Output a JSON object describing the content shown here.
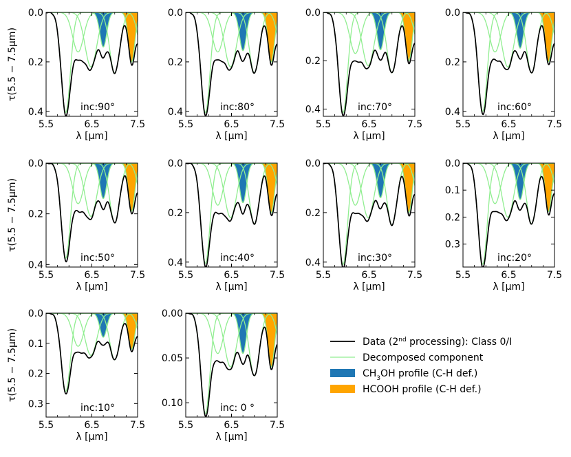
{
  "figure": {
    "ylabel": "τ(5.5 − 7.5μm)",
    "xlabel": "λ [μm]"
  },
  "legend": {
    "items": [
      {
        "key": "data",
        "label_pre": "Data (2",
        "label_sup": "nd",
        "label_post": " processing): Class 0/I",
        "color": "#000000",
        "kind": "line"
      },
      {
        "key": "component",
        "label_pre": "Decomposed component",
        "color": "#90ee90",
        "kind": "line"
      },
      {
        "key": "ch3oh",
        "label_pre": "CH",
        "label_sub": "3",
        "label_post": "OH profile (C-H def.)",
        "color": "#1f77b4",
        "kind": "patch"
      },
      {
        "key": "hcooh",
        "label_pre": "HCOOH profile (C-H def.)",
        "color": "#ffa500",
        "kind": "patch"
      }
    ]
  },
  "chart_data": [
    {
      "type": "line",
      "inc_label": "inc:90°",
      "xlim": [
        5.5,
        7.5
      ],
      "ylim": [
        0.0,
        0.42
      ],
      "yticks": [
        0.0,
        0.2,
        0.4
      ],
      "ytick_labels": [
        "0.0",
        "0.2",
        "0.4"
      ],
      "xticks": [
        5.5,
        6.5,
        7.5
      ],
      "xtick_labels": [
        "5.5",
        "6.5",
        "7.5"
      ],
      "components": [
        {
          "center": 5.93,
          "sigma": 0.1,
          "depth": 0.405
        },
        {
          "center": 6.2,
          "sigma": 0.12,
          "depth": 0.16
        },
        {
          "center": 6.48,
          "sigma": 0.13,
          "depth": 0.22
        },
        {
          "center": 6.75,
          "sigma": 0.075,
          "depth": 0.14
        },
        {
          "center": 7.0,
          "sigma": 0.11,
          "depth": 0.245
        },
        {
          "center": 7.37,
          "sigma": 0.07,
          "depth": 0.2
        },
        {
          "center": 7.6,
          "sigma": 0.1,
          "depth": 0.15
        }
      ],
      "ch3oh_index": 3,
      "hcooh_index": 5
    },
    {
      "type": "line",
      "inc_label": "inc:80°",
      "xlim": [
        5.5,
        7.5
      ],
      "ylim": [
        0.0,
        0.42
      ],
      "yticks": [
        0.0,
        0.2,
        0.4
      ],
      "ytick_labels": [
        "0.0",
        "0.2",
        "0.4"
      ],
      "xticks": [
        5.5,
        6.5,
        7.5
      ],
      "xtick_labels": [
        "5.5",
        "6.5",
        "7.5"
      ],
      "components": [
        {
          "center": 5.93,
          "sigma": 0.1,
          "depth": 0.405
        },
        {
          "center": 6.2,
          "sigma": 0.12,
          "depth": 0.16
        },
        {
          "center": 6.48,
          "sigma": 0.13,
          "depth": 0.22
        },
        {
          "center": 6.75,
          "sigma": 0.075,
          "depth": 0.155
        },
        {
          "center": 7.0,
          "sigma": 0.11,
          "depth": 0.245
        },
        {
          "center": 7.37,
          "sigma": 0.07,
          "depth": 0.2
        },
        {
          "center": 7.6,
          "sigma": 0.1,
          "depth": 0.15
        }
      ],
      "ch3oh_index": 3,
      "hcooh_index": 5
    },
    {
      "type": "line",
      "inc_label": "inc:70°",
      "xlim": [
        5.5,
        7.5
      ],
      "ylim": [
        0.0,
        0.43
      ],
      "yticks": [
        0.0,
        0.2,
        0.4
      ],
      "ytick_labels": [
        "0.0",
        "0.2",
        "0.4"
      ],
      "xticks": [
        5.5,
        6.5,
        7.5
      ],
      "xtick_labels": [
        "5.5",
        "6.5",
        "7.5"
      ],
      "components": [
        {
          "center": 5.93,
          "sigma": 0.1,
          "depth": 0.415
        },
        {
          "center": 6.2,
          "sigma": 0.12,
          "depth": 0.17
        },
        {
          "center": 6.48,
          "sigma": 0.13,
          "depth": 0.22
        },
        {
          "center": 6.75,
          "sigma": 0.075,
          "depth": 0.155
        },
        {
          "center": 7.0,
          "sigma": 0.11,
          "depth": 0.25
        },
        {
          "center": 7.37,
          "sigma": 0.07,
          "depth": 0.2
        },
        {
          "center": 7.6,
          "sigma": 0.1,
          "depth": 0.15
        }
      ],
      "ch3oh_index": 3,
      "hcooh_index": 5
    },
    {
      "type": "line",
      "inc_label": "inc:60°",
      "xlim": [
        5.5,
        7.5
      ],
      "ylim": [
        0.0,
        0.42
      ],
      "yticks": [
        0.0,
        0.2,
        0.4
      ],
      "ytick_labels": [
        "0.0",
        "0.2",
        "0.4"
      ],
      "xticks": [
        5.5,
        6.5,
        7.5
      ],
      "xtick_labels": [
        "5.5",
        "6.5",
        "7.5"
      ],
      "components": [
        {
          "center": 5.93,
          "sigma": 0.1,
          "depth": 0.4
        },
        {
          "center": 6.2,
          "sigma": 0.12,
          "depth": 0.16
        },
        {
          "center": 6.48,
          "sigma": 0.13,
          "depth": 0.22
        },
        {
          "center": 6.75,
          "sigma": 0.075,
          "depth": 0.145
        },
        {
          "center": 7.0,
          "sigma": 0.11,
          "depth": 0.245
        },
        {
          "center": 7.37,
          "sigma": 0.07,
          "depth": 0.2
        },
        {
          "center": 7.6,
          "sigma": 0.1,
          "depth": 0.15
        }
      ],
      "ch3oh_index": 3,
      "hcooh_index": 5
    },
    {
      "type": "line",
      "inc_label": "inc:50°",
      "xlim": [
        5.5,
        7.5
      ],
      "ylim": [
        0.0,
        0.41
      ],
      "yticks": [
        0.0,
        0.2,
        0.4
      ],
      "ytick_labels": [
        "0.0",
        "0.2",
        "0.4"
      ],
      "xticks": [
        5.5,
        6.5,
        7.5
      ],
      "xtick_labels": [
        "5.5",
        "6.5",
        "7.5"
      ],
      "components": [
        {
          "center": 5.93,
          "sigma": 0.1,
          "depth": 0.375
        },
        {
          "center": 6.2,
          "sigma": 0.12,
          "depth": 0.16
        },
        {
          "center": 6.48,
          "sigma": 0.13,
          "depth": 0.21
        },
        {
          "center": 6.75,
          "sigma": 0.075,
          "depth": 0.14
        },
        {
          "center": 7.0,
          "sigma": 0.11,
          "depth": 0.235
        },
        {
          "center": 7.37,
          "sigma": 0.07,
          "depth": 0.19
        },
        {
          "center": 7.6,
          "sigma": 0.1,
          "depth": 0.14
        }
      ],
      "ch3oh_index": 3,
      "hcooh_index": 5
    },
    {
      "type": "line",
      "inc_label": "inc:40°",
      "xlim": [
        5.5,
        7.5
      ],
      "ylim": [
        0.0,
        0.42
      ],
      "yticks": [
        0.0,
        0.2,
        0.4
      ],
      "ytick_labels": [
        "0.0",
        "0.2",
        "0.4"
      ],
      "xticks": [
        5.5,
        6.5,
        7.5
      ],
      "xtick_labels": [
        "5.5",
        "6.5",
        "7.5"
      ],
      "components": [
        {
          "center": 5.93,
          "sigma": 0.1,
          "depth": 0.405
        },
        {
          "center": 6.2,
          "sigma": 0.12,
          "depth": 0.17
        },
        {
          "center": 6.48,
          "sigma": 0.13,
          "depth": 0.22
        },
        {
          "center": 6.75,
          "sigma": 0.075,
          "depth": 0.16
        },
        {
          "center": 7.0,
          "sigma": 0.11,
          "depth": 0.245
        },
        {
          "center": 7.37,
          "sigma": 0.07,
          "depth": 0.2
        },
        {
          "center": 7.6,
          "sigma": 0.1,
          "depth": 0.15
        }
      ],
      "ch3oh_index": 3,
      "hcooh_index": 5
    },
    {
      "type": "line",
      "inc_label": "inc:30°",
      "xlim": [
        5.5,
        7.5
      ],
      "ylim": [
        0.0,
        0.42
      ],
      "yticks": [
        0.0,
        0.2,
        0.4
      ],
      "ytick_labels": [
        "0.0",
        "0.2",
        "0.4"
      ],
      "xticks": [
        5.5,
        6.5,
        7.5
      ],
      "xtick_labels": [
        "5.5",
        "6.5",
        "7.5"
      ],
      "components": [
        {
          "center": 5.93,
          "sigma": 0.1,
          "depth": 0.41
        },
        {
          "center": 6.2,
          "sigma": 0.12,
          "depth": 0.17
        },
        {
          "center": 6.48,
          "sigma": 0.13,
          "depth": 0.22
        },
        {
          "center": 6.75,
          "sigma": 0.075,
          "depth": 0.14
        },
        {
          "center": 7.0,
          "sigma": 0.11,
          "depth": 0.25
        },
        {
          "center": 7.37,
          "sigma": 0.07,
          "depth": 0.2
        },
        {
          "center": 7.6,
          "sigma": 0.1,
          "depth": 0.15
        }
      ],
      "ch3oh_index": 3,
      "hcooh_index": 5
    },
    {
      "type": "line",
      "inc_label": "inc:20°",
      "xlim": [
        5.5,
        7.5
      ],
      "ylim": [
        0.0,
        0.385
      ],
      "yticks": [
        0.0,
        0.1,
        0.2,
        0.3
      ],
      "ytick_labels": [
        "0.0",
        "0.1",
        "0.2",
        "0.3"
      ],
      "xticks": [
        5.5,
        6.5,
        7.5
      ],
      "xtick_labels": [
        "5.5",
        "6.5",
        "7.5"
      ],
      "components": [
        {
          "center": 5.93,
          "sigma": 0.1,
          "depth": 0.375
        },
        {
          "center": 6.2,
          "sigma": 0.12,
          "depth": 0.15
        },
        {
          "center": 6.48,
          "sigma": 0.13,
          "depth": 0.2
        },
        {
          "center": 6.75,
          "sigma": 0.075,
          "depth": 0.135
        },
        {
          "center": 7.0,
          "sigma": 0.11,
          "depth": 0.225
        },
        {
          "center": 7.37,
          "sigma": 0.07,
          "depth": 0.18
        },
        {
          "center": 7.6,
          "sigma": 0.1,
          "depth": 0.13
        }
      ],
      "ch3oh_index": 3,
      "hcooh_index": 5
    },
    {
      "type": "line",
      "inc_label": "inc:10°",
      "xlim": [
        5.5,
        7.5
      ],
      "ylim": [
        0.0,
        0.345
      ],
      "yticks": [
        0.0,
        0.1,
        0.2,
        0.3
      ],
      "ytick_labels": [
        "0.0",
        "0.1",
        "0.2",
        "0.3"
      ],
      "xticks": [
        5.5,
        6.5,
        7.5
      ],
      "xtick_labels": [
        "5.5",
        "6.5",
        "7.5"
      ],
      "components": [
        {
          "center": 5.93,
          "sigma": 0.1,
          "depth": 0.26
        },
        {
          "center": 6.2,
          "sigma": 0.12,
          "depth": 0.11
        },
        {
          "center": 6.48,
          "sigma": 0.13,
          "depth": 0.14
        },
        {
          "center": 6.75,
          "sigma": 0.075,
          "depth": 0.08
        },
        {
          "center": 7.0,
          "sigma": 0.11,
          "depth": 0.155
        },
        {
          "center": 7.37,
          "sigma": 0.07,
          "depth": 0.12
        },
        {
          "center": 7.6,
          "sigma": 0.1,
          "depth": 0.09
        }
      ],
      "ch3oh_index": 3,
      "hcooh_index": 5
    },
    {
      "type": "line",
      "inc_label": "inc: 0 °",
      "xlim": [
        5.5,
        7.5
      ],
      "ylim": [
        0.0,
        0.116
      ],
      "yticks": [
        0.0,
        0.05,
        0.1
      ],
      "ytick_labels": [
        "0.00",
        "0.05",
        "0.10"
      ],
      "xticks": [
        5.5,
        6.5,
        7.5
      ],
      "xtick_labels": [
        "5.5",
        "6.5",
        "7.5"
      ],
      "components": [
        {
          "center": 5.93,
          "sigma": 0.1,
          "depth": 0.112
        },
        {
          "center": 6.2,
          "sigma": 0.12,
          "depth": 0.045
        },
        {
          "center": 6.48,
          "sigma": 0.13,
          "depth": 0.06
        },
        {
          "center": 6.75,
          "sigma": 0.075,
          "depth": 0.045
        },
        {
          "center": 7.0,
          "sigma": 0.11,
          "depth": 0.07
        },
        {
          "center": 7.37,
          "sigma": 0.07,
          "depth": 0.06
        },
        {
          "center": 7.6,
          "sigma": 0.1,
          "depth": 0.04
        }
      ],
      "ch3oh_index": 3,
      "hcooh_index": 5
    }
  ]
}
